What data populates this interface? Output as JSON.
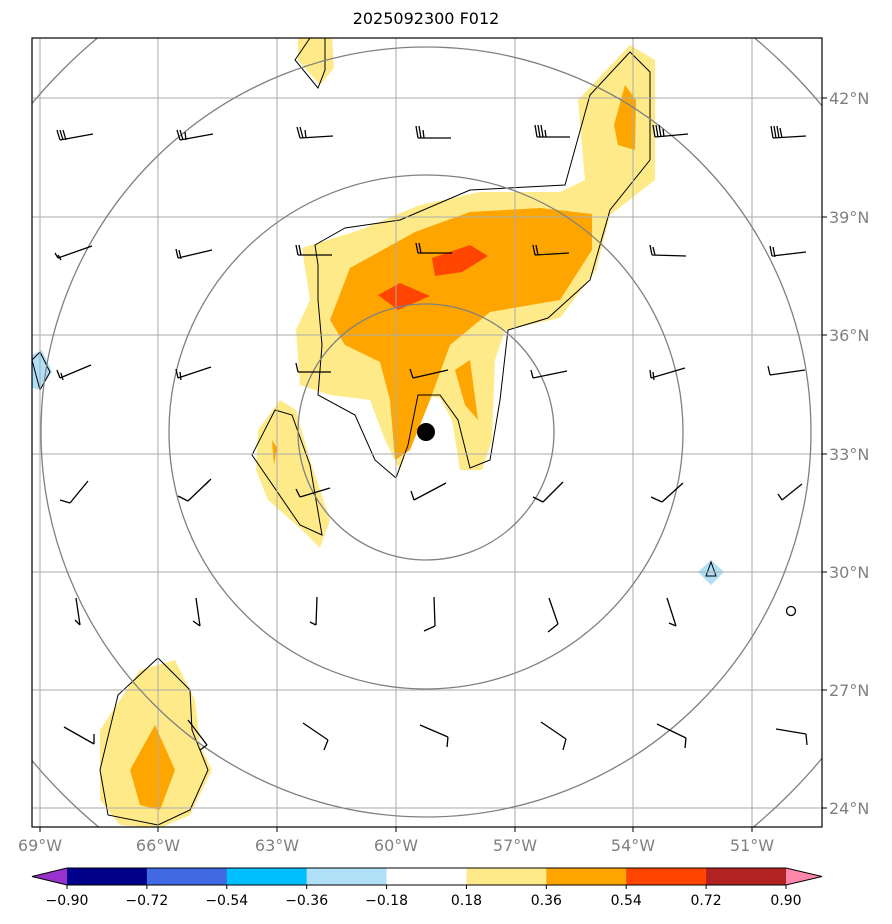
{
  "title": "2025092300 F012",
  "chart_data": {
    "type": "map",
    "projection": "polar stereographic",
    "lon_ticks": [
      "69°W",
      "66°W",
      "63°W",
      "60°W",
      "57°W",
      "54°W",
      "51°W"
    ],
    "lat_ticks": [
      "42°N",
      "39°N",
      "36°N",
      "33°N",
      "30°N",
      "27°N",
      "24°N"
    ],
    "colorbar": {
      "ticks": [
        "−0.90",
        "−0.72",
        "−0.54",
        "−0.36",
        "−0.18",
        "0.18",
        "0.36",
        "0.54",
        "0.72",
        "0.90"
      ],
      "colors": [
        "#9932cc",
        "#00008b",
        "#4169e1",
        "#00bfff",
        "#b0e0f8",
        "#ffffff",
        "#ffea8a",
        "#ffa500",
        "#ff4500",
        "#b22222",
        "#ff88aa"
      ]
    },
    "center_marker": "filled-circle"
  }
}
